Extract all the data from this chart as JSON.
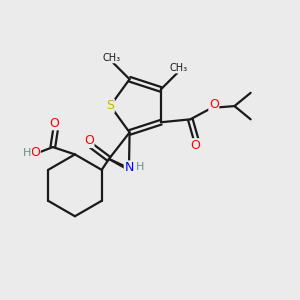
{
  "background_color": "#ebebeb",
  "bond_color": "#1a1a1a",
  "atom_colors": {
    "S": "#c8b400",
    "N": "#0000ff",
    "O": "#ff0000",
    "H": "#6b8e8e",
    "C": "#1a1a1a"
  },
  "figsize": [
    3.0,
    3.0
  ],
  "dpi": 100
}
